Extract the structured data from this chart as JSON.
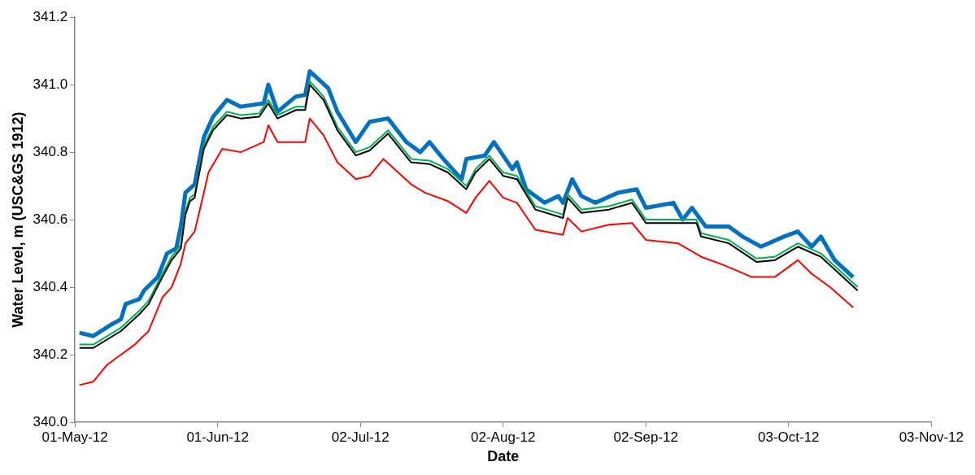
{
  "chart_data": {
    "type": "line",
    "xlabel": "Date",
    "ylabel": "Water Level, m (USC&GS 1912)",
    "xlim": [
      "2012-05-01",
      "2012-11-03"
    ],
    "xticks": [
      {
        "value": "2012-05-01",
        "label": "01-May-12"
      },
      {
        "value": "2012-06-01",
        "label": "01-Jun-12"
      },
      {
        "value": "2012-07-02",
        "label": "02-Jul-12"
      },
      {
        "value": "2012-08-02",
        "label": "02-Aug-12"
      },
      {
        "value": "2012-09-02",
        "label": "02-Sep-12"
      },
      {
        "value": "2012-10-03",
        "label": "03-Oct-12"
      },
      {
        "value": "2012-11-03",
        "label": "03-Nov-12"
      }
    ],
    "ylim": [
      340,
      341.2
    ],
    "yticks": [
      {
        "value": 340,
        "label": "340.0"
      },
      {
        "value": 340.2,
        "label": "340.2"
      },
      {
        "value": 340.4,
        "label": "340.4"
      },
      {
        "value": 340.6,
        "label": "340.6"
      },
      {
        "value": 340.8,
        "label": "340.8"
      },
      {
        "value": 341,
        "label": "341.0"
      },
      {
        "value": 341.2,
        "label": "341.2"
      }
    ],
    "grid": false,
    "legend": false,
    "marker": "none",
    "line_style": "solid",
    "series": [
      {
        "color": "#0070c0",
        "x": [
          "2012-05-02",
          "2012-05-05",
          "2012-05-09",
          "2012-05-11",
          "2012-05-12",
          "2012-05-15",
          "2012-05-16",
          "2012-05-19",
          "2012-05-21",
          "2012-05-23",
          "2012-05-24",
          "2012-05-25",
          "2012-05-27",
          "2012-05-29",
          "2012-05-31",
          "2012-06-03",
          "2012-06-06",
          "2012-06-11",
          "2012-06-12",
          "2012-06-14",
          "2012-06-18",
          "2012-06-20",
          "2012-06-21",
          "2012-06-25",
          "2012-06-27",
          "2012-07-01",
          "2012-07-04",
          "2012-07-08",
          "2012-07-12",
          "2012-07-15",
          "2012-07-17",
          "2012-07-20",
          "2012-07-24",
          "2012-07-25",
          "2012-07-29",
          "2012-07-31",
          "2012-08-04",
          "2012-08-05",
          "2012-08-07",
          "2012-08-11",
          "2012-08-14",
          "2012-08-15",
          "2012-08-17",
          "2012-08-19",
          "2012-08-22",
          "2012-08-27",
          "2012-08-31",
          "2012-09-02",
          "2012-09-08",
          "2012-09-10",
          "2012-09-12",
          "2012-09-15",
          "2012-09-20",
          "2012-09-23",
          "2012-09-27",
          "2012-10-02",
          "2012-10-05",
          "2012-10-08",
          "2012-10-10",
          "2012-10-13",
          "2012-10-17"
        ],
        "values": [
          340.265,
          340.255,
          340.29,
          340.305,
          340.35,
          340.365,
          340.39,
          340.43,
          340.5,
          340.515,
          340.58,
          340.68,
          340.705,
          340.845,
          340.905,
          340.955,
          340.935,
          340.945,
          341.0,
          340.92,
          340.965,
          340.97,
          341.04,
          340.99,
          340.92,
          340.83,
          340.89,
          340.9,
          340.83,
          340.8,
          340.83,
          340.78,
          340.72,
          340.78,
          340.79,
          340.83,
          340.75,
          340.77,
          340.69,
          340.65,
          340.67,
          340.65,
          340.72,
          340.67,
          340.65,
          340.68,
          340.69,
          340.635,
          340.65,
          340.6,
          340.635,
          340.58,
          340.58,
          340.55,
          340.52,
          340.55,
          340.565,
          340.52,
          340.55,
          340.48,
          340.43
        ]
      },
      {
        "color": "#00b050",
        "x": [
          "2012-05-02",
          "2012-05-05",
          "2012-05-11",
          "2012-05-15",
          "2012-05-17",
          "2012-05-20",
          "2012-05-22",
          "2012-05-24",
          "2012-05-25",
          "2012-05-26",
          "2012-05-27",
          "2012-05-29",
          "2012-05-31",
          "2012-06-03",
          "2012-06-06",
          "2012-06-10",
          "2012-06-12",
          "2012-06-14",
          "2012-06-18",
          "2012-06-20",
          "2012-06-21",
          "2012-06-24",
          "2012-06-27",
          "2012-07-01",
          "2012-07-04",
          "2012-07-08",
          "2012-07-13",
          "2012-07-17",
          "2012-07-21",
          "2012-07-25",
          "2012-07-27",
          "2012-07-30",
          "2012-08-02",
          "2012-08-05",
          "2012-08-09",
          "2012-08-15",
          "2012-08-16",
          "2012-08-19",
          "2012-08-25",
          "2012-08-30",
          "2012-09-02",
          "2012-09-09",
          "2012-09-13",
          "2012-09-14",
          "2012-09-20",
          "2012-09-26",
          "2012-09-30",
          "2012-10-05",
          "2012-10-10",
          "2012-10-14",
          "2012-10-18"
        ],
        "values": [
          340.23,
          340.23,
          340.28,
          340.33,
          340.36,
          340.44,
          340.49,
          340.525,
          340.625,
          340.665,
          340.675,
          340.82,
          340.875,
          340.92,
          340.91,
          340.915,
          340.955,
          340.91,
          340.935,
          340.935,
          341.01,
          340.965,
          340.875,
          340.8,
          340.815,
          340.865,
          340.78,
          340.775,
          340.75,
          340.7,
          340.75,
          340.79,
          340.74,
          340.73,
          340.64,
          340.615,
          340.675,
          340.63,
          340.64,
          340.66,
          340.6,
          340.6,
          340.6,
          340.56,
          340.54,
          340.485,
          340.49,
          340.53,
          340.5,
          340.45,
          340.4
        ]
      },
      {
        "color": "#000000",
        "x": [
          "2012-05-02",
          "2012-05-05",
          "2012-05-11",
          "2012-05-15",
          "2012-05-17",
          "2012-05-20",
          "2012-05-22",
          "2012-05-24",
          "2012-05-25",
          "2012-05-26",
          "2012-05-27",
          "2012-05-29",
          "2012-05-31",
          "2012-06-03",
          "2012-06-06",
          "2012-06-10",
          "2012-06-12",
          "2012-06-14",
          "2012-06-18",
          "2012-06-20",
          "2012-06-21",
          "2012-06-24",
          "2012-06-27",
          "2012-07-01",
          "2012-07-04",
          "2012-07-08",
          "2012-07-13",
          "2012-07-17",
          "2012-07-21",
          "2012-07-25",
          "2012-07-27",
          "2012-07-30",
          "2012-08-02",
          "2012-08-05",
          "2012-08-09",
          "2012-08-15",
          "2012-08-16",
          "2012-08-19",
          "2012-08-25",
          "2012-08-30",
          "2012-09-02",
          "2012-09-09",
          "2012-09-13",
          "2012-09-14",
          "2012-09-20",
          "2012-09-26",
          "2012-09-30",
          "2012-10-05",
          "2012-10-10",
          "2012-10-14",
          "2012-10-18"
        ],
        "values": [
          340.22,
          340.22,
          340.27,
          340.32,
          340.35,
          340.43,
          340.48,
          340.515,
          340.615,
          340.655,
          340.665,
          340.81,
          340.865,
          340.91,
          340.9,
          340.905,
          340.945,
          340.9,
          340.925,
          340.925,
          341.0,
          340.955,
          340.865,
          340.79,
          340.805,
          340.855,
          340.77,
          340.765,
          340.74,
          340.69,
          340.74,
          340.78,
          340.73,
          340.72,
          340.63,
          340.605,
          340.665,
          340.62,
          340.63,
          340.65,
          340.59,
          340.59,
          340.59,
          340.55,
          340.53,
          340.475,
          340.48,
          340.52,
          340.49,
          340.44,
          340.39
        ]
      },
      {
        "color": "#ff0000",
        "x": [
          "2012-05-02",
          "2012-05-05",
          "2012-05-08",
          "2012-05-11",
          "2012-05-14",
          "2012-05-17",
          "2012-05-20",
          "2012-05-22",
          "2012-05-24",
          "2012-05-25",
          "2012-05-27",
          "2012-05-29",
          "2012-05-30",
          "2012-06-02",
          "2012-06-06",
          "2012-06-11",
          "2012-06-12",
          "2012-06-14",
          "2012-06-18",
          "2012-06-20",
          "2012-06-21",
          "2012-06-24",
          "2012-06-27",
          "2012-07-01",
          "2012-07-04",
          "2012-07-07",
          "2012-07-13",
          "2012-07-16",
          "2012-07-21",
          "2012-07-25",
          "2012-07-27",
          "2012-07-30",
          "2012-08-02",
          "2012-08-05",
          "2012-08-09",
          "2012-08-15",
          "2012-08-16",
          "2012-08-19",
          "2012-08-25",
          "2012-08-30",
          "2012-09-02",
          "2012-09-09",
          "2012-09-14",
          "2012-09-19",
          "2012-09-25",
          "2012-09-30",
          "2012-10-05",
          "2012-10-08",
          "2012-10-12",
          "2012-10-17"
        ],
        "values": [
          340.11,
          340.12,
          340.17,
          340.2,
          340.23,
          340.27,
          340.37,
          340.4,
          340.47,
          340.53,
          340.565,
          340.68,
          340.74,
          340.81,
          340.8,
          340.83,
          340.88,
          340.83,
          340.83,
          340.83,
          340.9,
          340.85,
          340.77,
          340.72,
          340.73,
          340.78,
          340.705,
          340.68,
          340.655,
          340.62,
          340.665,
          340.715,
          340.665,
          340.65,
          340.57,
          340.555,
          340.605,
          340.565,
          340.585,
          340.59,
          340.54,
          340.53,
          340.49,
          340.465,
          340.43,
          340.43,
          340.48,
          340.44,
          340.4,
          340.34
        ]
      }
    ]
  }
}
